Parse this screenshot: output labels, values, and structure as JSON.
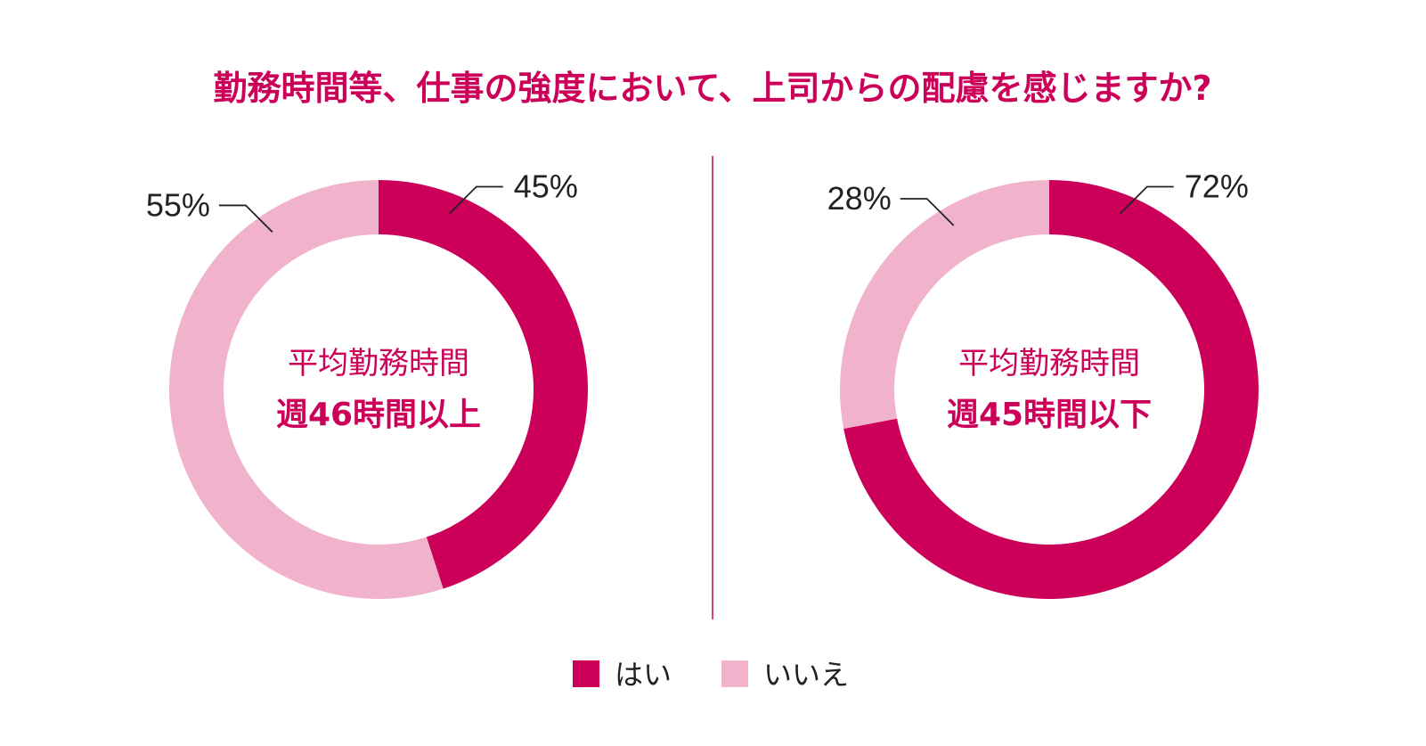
{
  "title": "勤務時間等、仕事の強度において、上司からの配慮を感じますか?",
  "colors": {
    "yes": "#cc0059",
    "no": "#f0b3cb",
    "title": "#cc0059",
    "text": "#222222",
    "divider": "#cc0059"
  },
  "legend": [
    {
      "label": "はい",
      "color_key": "yes"
    },
    {
      "label": "いいえ",
      "color_key": "no"
    }
  ],
  "chart_data": [
    {
      "type": "pie",
      "style": "donut",
      "center_label_1": "平均勤務時間",
      "center_label_2": "週46時間以上",
      "slices": [
        {
          "name": "はい",
          "value": 45,
          "label": "45%"
        },
        {
          "name": "いいえ",
          "value": 55,
          "label": "55%"
        }
      ]
    },
    {
      "type": "pie",
      "style": "donut",
      "center_label_1": "平均勤務時間",
      "center_label_2": "週45時間以下",
      "slices": [
        {
          "name": "はい",
          "value": 72,
          "label": "72%"
        },
        {
          "name": "いいえ",
          "value": 28,
          "label": "28%"
        }
      ]
    }
  ]
}
